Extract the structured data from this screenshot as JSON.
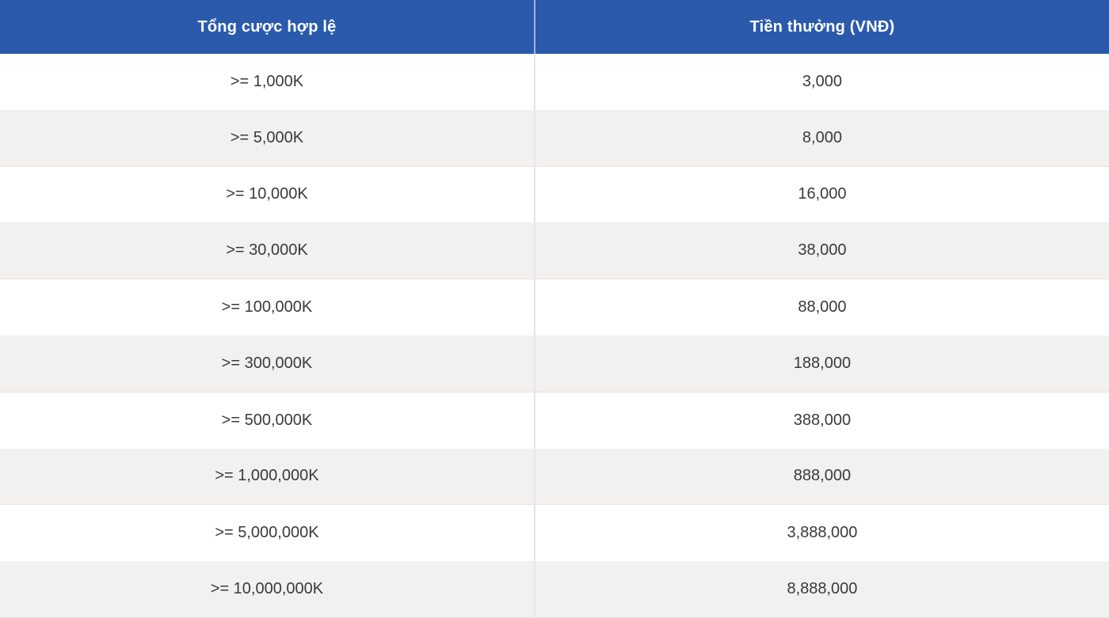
{
  "table": {
    "columns": [
      {
        "label": "Tổng cược hợp lệ"
      },
      {
        "label": "Tiền thưởng (VNĐ)"
      }
    ],
    "rows": [
      {
        "bet": ">= 1,000K",
        "bonus": "3,000"
      },
      {
        "bet": ">= 5,000K",
        "bonus": "8,000"
      },
      {
        "bet": ">= 10,000K",
        "bonus": "16,000"
      },
      {
        "bet": ">= 30,000K",
        "bonus": "38,000"
      },
      {
        "bet": ">= 100,000K",
        "bonus": "88,000"
      },
      {
        "bet": ">= 300,000K",
        "bonus": "188,000"
      },
      {
        "bet": ">= 500,000K",
        "bonus": "388,000"
      },
      {
        "bet": ">= 1,000,000K",
        "bonus": "888,000"
      },
      {
        "bet": ">= 5,000,000K",
        "bonus": "3,888,000"
      },
      {
        "bet": ">= 10,000,000K",
        "bonus": "8,888,000"
      }
    ]
  },
  "colors": {
    "header_bg": "#2b5aad",
    "header_text": "#ffffff",
    "row_bg": "#ffffff",
    "row_alt_bg": "#f2f1ef",
    "body_text": "#3a3a3a",
    "body_divider": "#e8e6e4"
  },
  "chart_data": {
    "type": "table",
    "title": "",
    "columns": [
      "Tổng cược hợp lệ",
      "Tiền thưởng (VNĐ)"
    ],
    "rows": [
      [
        ">= 1,000K",
        "3,000"
      ],
      [
        ">= 5,000K",
        "8,000"
      ],
      [
        ">= 10,000K",
        "16,000"
      ],
      [
        ">= 30,000K",
        "38,000"
      ],
      [
        ">= 100,000K",
        "88,000"
      ],
      [
        ">= 300,000K",
        "188,000"
      ],
      [
        ">= 500,000K",
        "388,000"
      ],
      [
        ">= 1,000,000K",
        "888,000"
      ],
      [
        ">= 5,000,000K",
        "3,888,000"
      ],
      [
        ">= 10,000,000K",
        "8,888,000"
      ]
    ],
    "bet_thresholds_k": [
      1000,
      5000,
      10000,
      30000,
      100000,
      300000,
      500000,
      1000000,
      5000000,
      10000000
    ],
    "bonus_vnd": [
      3000,
      8000,
      16000,
      38000,
      88000,
      188000,
      388000,
      888000,
      3888000,
      8888000
    ],
    "layout": {
      "header_position": "top",
      "zebra_striping": true
    }
  }
}
